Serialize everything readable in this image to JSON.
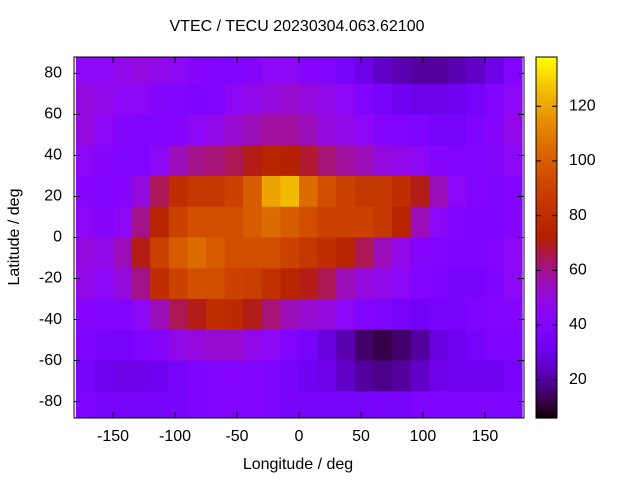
{
  "chart_data": {
    "type": "heatmap",
    "title": "VTEC / TECU 20230304.063.62100",
    "x_label": "Longitude / deg",
    "y_label": "Latitude / deg",
    "colormap": "gnuplot",
    "x": [
      -172.5,
      -157.5,
      -142.5,
      -127.5,
      -112.5,
      -97.5,
      -82.5,
      -67.5,
      -52.5,
      -37.5,
      -22.5,
      -7.5,
      7.5,
      22.5,
      37.5,
      52.5,
      67.5,
      82.5,
      97.5,
      112.5,
      127.5,
      142.5,
      157.5,
      172.5
    ],
    "y": [
      82.5,
      67.5,
      52.5,
      37.5,
      22.5,
      7.5,
      -7.5,
      -22.5,
      -37.5,
      -52.5,
      -67.5,
      -82.5
    ],
    "z": [
      [
        45,
        45,
        48,
        50,
        48,
        45,
        42,
        40,
        40,
        42,
        45,
        45,
        42,
        40,
        35,
        30,
        25,
        22,
        20,
        20,
        22,
        25,
        30,
        40
      ],
      [
        50,
        48,
        45,
        45,
        42,
        40,
        38,
        40,
        45,
        48,
        50,
        52,
        50,
        48,
        45,
        40,
        35,
        32,
        30,
        30,
        32,
        35,
        40,
        45
      ],
      [
        50,
        45,
        42,
        40,
        40,
        42,
        45,
        48,
        52,
        55,
        58,
        58,
        55,
        50,
        48,
        45,
        42,
        40,
        38,
        35,
        35,
        38,
        42,
        48
      ],
      [
        45,
        42,
        40,
        40,
        45,
        55,
        60,
        62,
        65,
        70,
        75,
        72,
        68,
        62,
        58,
        55,
        50,
        48,
        45,
        42,
        40,
        40,
        42,
        45
      ],
      [
        42,
        40,
        42,
        50,
        65,
        80,
        85,
        85,
        90,
        100,
        120,
        125,
        105,
        95,
        90,
        85,
        85,
        80,
        70,
        55,
        45,
        40,
        38,
        40
      ],
      [
        45,
        42,
        45,
        60,
        75,
        90,
        95,
        95,
        95,
        100,
        105,
        100,
        95,
        90,
        90,
        90,
        85,
        75,
        55,
        45,
        40,
        38,
        38,
        42
      ],
      [
        50,
        48,
        55,
        70,
        90,
        100,
        105,
        100,
        95,
        95,
        95,
        90,
        85,
        80,
        75,
        65,
        55,
        48,
        42,
        40,
        38,
        38,
        40,
        45
      ],
      [
        48,
        45,
        50,
        60,
        80,
        90,
        95,
        95,
        90,
        88,
        82,
        75,
        70,
        65,
        55,
        50,
        48,
        45,
        40,
        38,
        36,
        36,
        38,
        45
      ],
      [
        42,
        40,
        40,
        45,
        55,
        65,
        70,
        80,
        78,
        70,
        62,
        55,
        52,
        50,
        45,
        40,
        38,
        36,
        34,
        35,
        36,
        38,
        40,
        42
      ],
      [
        38,
        36,
        35,
        38,
        42,
        48,
        50,
        52,
        52,
        48,
        45,
        40,
        35,
        28,
        22,
        15,
        12,
        15,
        20,
        28,
        32,
        35,
        38,
        38
      ],
      [
        35,
        32,
        30,
        30,
        32,
        35,
        38,
        40,
        42,
        40,
        38,
        35,
        32,
        30,
        25,
        20,
        18,
        20,
        25,
        30,
        32,
        32,
        32,
        35
      ],
      [
        38,
        36,
        35,
        35,
        35,
        36,
        38,
        40,
        40,
        40,
        38,
        36,
        35,
        35,
        35,
        35,
        36,
        36,
        38,
        38,
        38,
        38,
        38,
        38
      ]
    ],
    "xlim": [
      -181.5,
      181.5
    ],
    "ylim": [
      -88,
      88
    ],
    "xticks": [
      -150,
      -100,
      -50,
      0,
      50,
      100,
      150
    ],
    "yticks": [
      -80,
      -60,
      -40,
      -20,
      0,
      20,
      40,
      60,
      80
    ],
    "cblim": [
      6,
      138
    ],
    "cbticks": [
      20,
      40,
      60,
      80,
      100,
      120
    ]
  }
}
